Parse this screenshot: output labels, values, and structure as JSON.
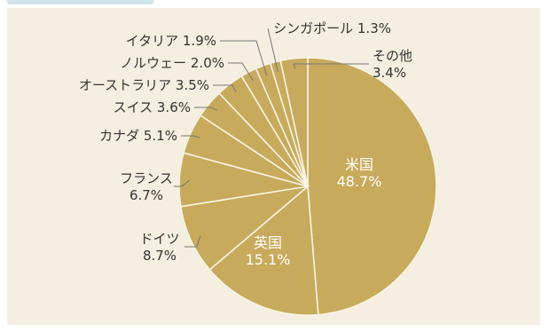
{
  "chart_data": {
    "type": "pie",
    "slices": [
      {
        "label": "米国",
        "value": 48.7,
        "value_text": "48.7%"
      },
      {
        "label": "英国",
        "value": 15.1,
        "value_text": "15.1%"
      },
      {
        "label": "ドイツ",
        "value": 8.7,
        "value_text": "8.7%"
      },
      {
        "label": "フランス",
        "value": 6.7,
        "value_text": "6.7%"
      },
      {
        "label": "カナダ",
        "value": 5.1,
        "value_text": "5.1%"
      },
      {
        "label": "スイス",
        "value": 3.6,
        "value_text": "3.6%"
      },
      {
        "label": "オーストラリア",
        "value": 3.5,
        "value_text": "3.5%"
      },
      {
        "label": "ノルウェー",
        "value": 2.0,
        "value_text": "2.0%"
      },
      {
        "label": "イタリア",
        "value": 1.9,
        "value_text": "1.9%"
      },
      {
        "label": "シンガポール",
        "value": 1.3,
        "value_text": "1.3%"
      },
      {
        "label": "その他",
        "value": 3.4,
        "value_text": "3.4%"
      }
    ],
    "colors": {
      "slice_fill": "#c8aa5c",
      "slice_border": "#f8f3e2",
      "background": "#f4efe0",
      "label_text": "#333333",
      "inside_label_text": "#ffffff",
      "leader_line": "#777777"
    }
  }
}
